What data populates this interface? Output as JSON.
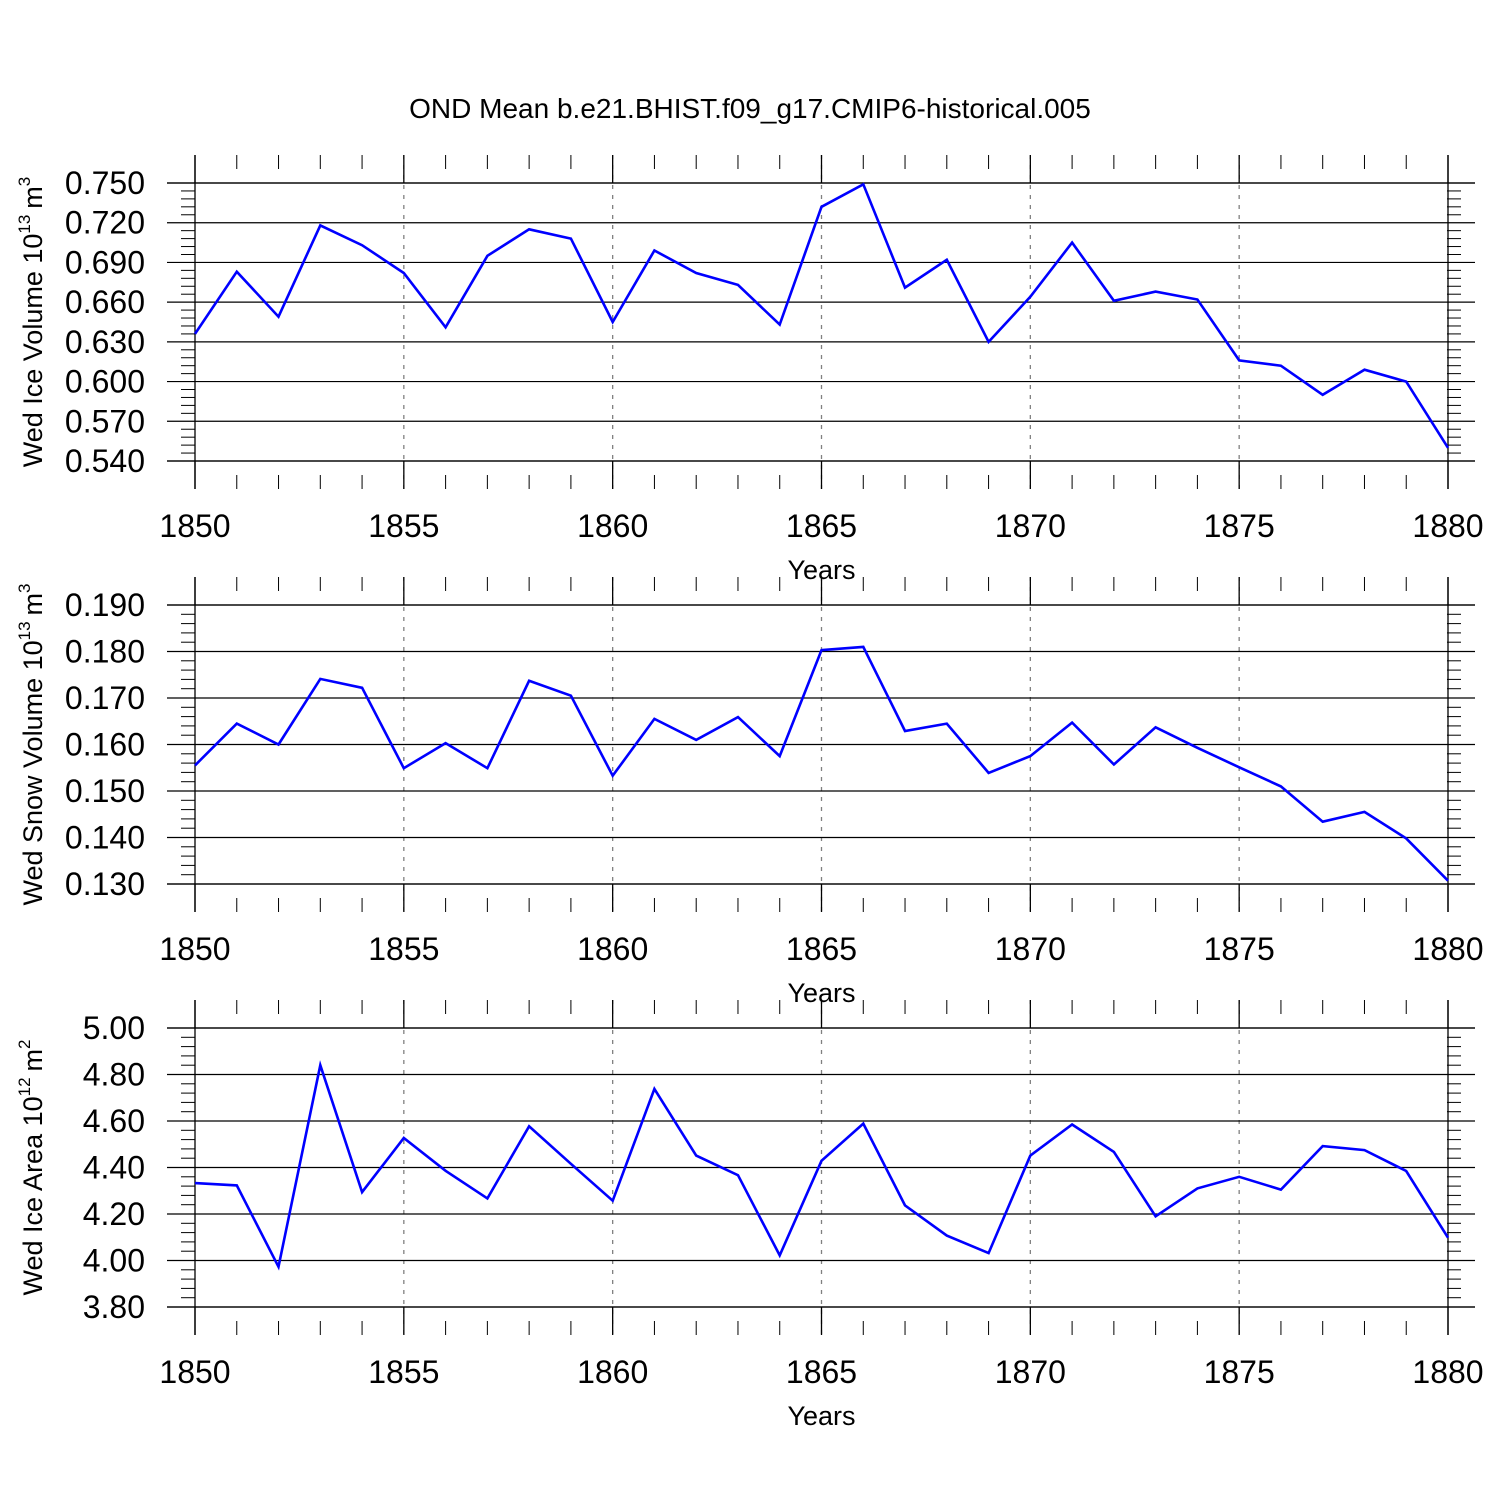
{
  "figure": {
    "title": "OND Mean b.e21.BHIST.f09_g17.CMIP6-historical.005"
  },
  "colors": {
    "series": "#0000ff",
    "axis": "#000000",
    "grid": "#808080",
    "background": "#ffffff"
  },
  "chart_data": [
    {
      "type": "line",
      "title": "",
      "xlabel": "Years",
      "ylabel": "Wed Ice Volume 10",
      "ylabel_exp": "13",
      "ylabel_unit": "m",
      "ylabel_unit_exp": "3",
      "xlim": [
        1850,
        1880
      ],
      "ylim": [
        0.54,
        0.75
      ],
      "xticks": [
        "1850",
        "1855",
        "1860",
        "1865",
        "1870",
        "1875",
        "1880"
      ],
      "yticks": [
        "0.540",
        "0.570",
        "0.600",
        "0.630",
        "0.660",
        "0.690",
        "0.720",
        "0.750"
      ],
      "grid": "vertical dashed at major x ticks",
      "x": [
        1850,
        1851,
        1852,
        1853,
        1854,
        1855,
        1856,
        1857,
        1858,
        1859,
        1860,
        1861,
        1862,
        1863,
        1864,
        1865,
        1866,
        1867,
        1868,
        1869,
        1870,
        1871,
        1872,
        1873,
        1874,
        1875,
        1876,
        1877,
        1878,
        1879,
        1880
      ],
      "series": [
        {
          "values": [
            0.636,
            0.683,
            0.649,
            0.718,
            0.703,
            0.682,
            0.641,
            0.695,
            0.715,
            0.708,
            0.645,
            0.699,
            0.682,
            0.673,
            0.643,
            0.732,
            0.749,
            0.671,
            0.692,
            0.63,
            0.664,
            0.705,
            0.661,
            0.668,
            0.662,
            0.616,
            0.612,
            0.59,
            0.609,
            0.6,
            0.55
          ]
        }
      ]
    },
    {
      "type": "line",
      "title": "",
      "xlabel": "Years",
      "ylabel": "Wed Snow Volume 10",
      "ylabel_exp": "13",
      "ylabel_unit": "m",
      "ylabel_unit_exp": "3",
      "xlim": [
        1850,
        1880
      ],
      "ylim": [
        0.13,
        0.19
      ],
      "xticks": [
        "1850",
        "1855",
        "1860",
        "1865",
        "1870",
        "1875",
        "1880"
      ],
      "yticks": [
        "0.130",
        "0.140",
        "0.150",
        "0.160",
        "0.170",
        "0.180",
        "0.190"
      ],
      "grid": "vertical dashed at major x ticks",
      "x": [
        1850,
        1851,
        1852,
        1853,
        1854,
        1855,
        1856,
        1857,
        1858,
        1859,
        1860,
        1861,
        1862,
        1863,
        1864,
        1865,
        1866,
        1867,
        1868,
        1869,
        1870,
        1871,
        1872,
        1873,
        1874,
        1875,
        1876,
        1877,
        1878,
        1879,
        1880
      ],
      "series": [
        {
          "values": [
            0.1555,
            0.1645,
            0.16,
            0.1741,
            0.1722,
            0.1549,
            0.1603,
            0.1549,
            0.1737,
            0.1705,
            0.1533,
            0.1655,
            0.161,
            0.1659,
            0.1575,
            0.1803,
            0.181,
            0.1629,
            0.1645,
            0.1539,
            0.1575,
            0.1647,
            0.1557,
            0.1637,
            0.1593,
            0.1551,
            0.151,
            0.1434,
            0.1455,
            0.1398,
            0.1307
          ]
        }
      ]
    },
    {
      "type": "line",
      "title": "",
      "xlabel": "Years",
      "ylabel": "Wed Ice Area 10",
      "ylabel_exp": "12",
      "ylabel_unit": "m",
      "ylabel_unit_exp": "2",
      "xlim": [
        1850,
        1880
      ],
      "ylim": [
        3.8,
        5.0
      ],
      "xticks": [
        "1850",
        "1855",
        "1860",
        "1865",
        "1870",
        "1875",
        "1880"
      ],
      "yticks": [
        "3.80",
        "4.00",
        "4.20",
        "4.40",
        "4.60",
        "4.80",
        "5.00"
      ],
      "grid": "vertical dashed at major x ticks",
      "x": [
        1850,
        1851,
        1852,
        1853,
        1854,
        1855,
        1856,
        1857,
        1858,
        1859,
        1860,
        1861,
        1862,
        1863,
        1864,
        1865,
        1866,
        1867,
        1868,
        1869,
        1870,
        1871,
        1872,
        1873,
        1874,
        1875,
        1876,
        1877,
        1878,
        1879,
        1880
      ],
      "series": [
        {
          "values": [
            4.333,
            4.323,
            3.973,
            4.84,
            4.294,
            4.527,
            4.386,
            4.267,
            4.577,
            4.416,
            4.257,
            4.738,
            4.451,
            4.367,
            4.022,
            4.429,
            4.589,
            4.237,
            4.107,
            4.032,
            4.451,
            4.585,
            4.467,
            4.19,
            4.31,
            4.36,
            4.305,
            4.492,
            4.475,
            4.385,
            4.098
          ]
        }
      ]
    }
  ]
}
